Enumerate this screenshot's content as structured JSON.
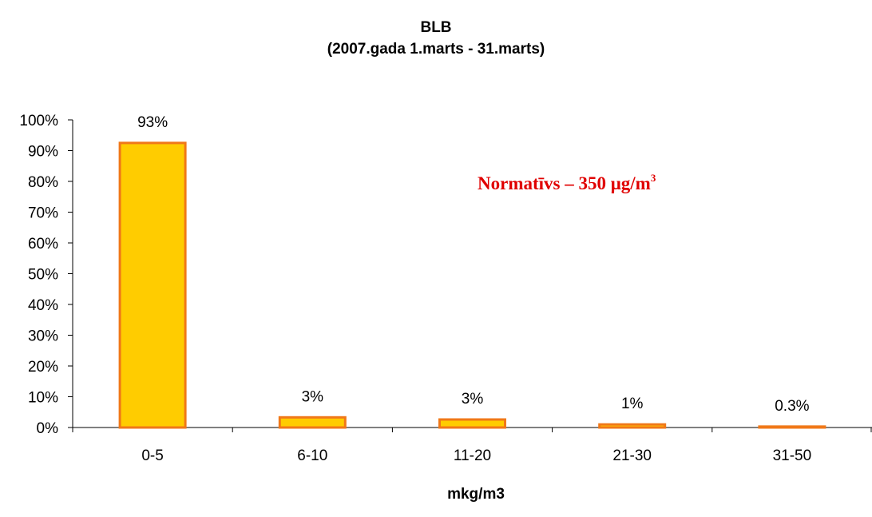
{
  "chart_data": {
    "type": "bar",
    "title": "BLB",
    "subtitle": "(2007.gada 1.marts - 31.marts)",
    "categories": [
      "0-5",
      "6-10",
      "11-20",
      "21-30",
      "31-50"
    ],
    "values": [
      0.925,
      0.033,
      0.026,
      0.01,
      0.003
    ],
    "data_labels": [
      "93%",
      "3%",
      "3%",
      "1%",
      "0.3%"
    ],
    "xlabel": "mkg/m3",
    "ylabel": "",
    "ylim": [
      0,
      1
    ],
    "yticks": [
      "0%",
      "10%",
      "20%",
      "30%",
      "40%",
      "50%",
      "60%",
      "70%",
      "80%",
      "90%",
      "100%"
    ],
    "grid": false,
    "legend": "none",
    "annotation": {
      "text": "Normatīvs – 350 μg/m",
      "superscript": "3"
    },
    "colors": {
      "bar_fill": "#FFCC00",
      "bar_stroke": "#F07818",
      "annotation": "#E00000",
      "axis": "#000000"
    }
  }
}
